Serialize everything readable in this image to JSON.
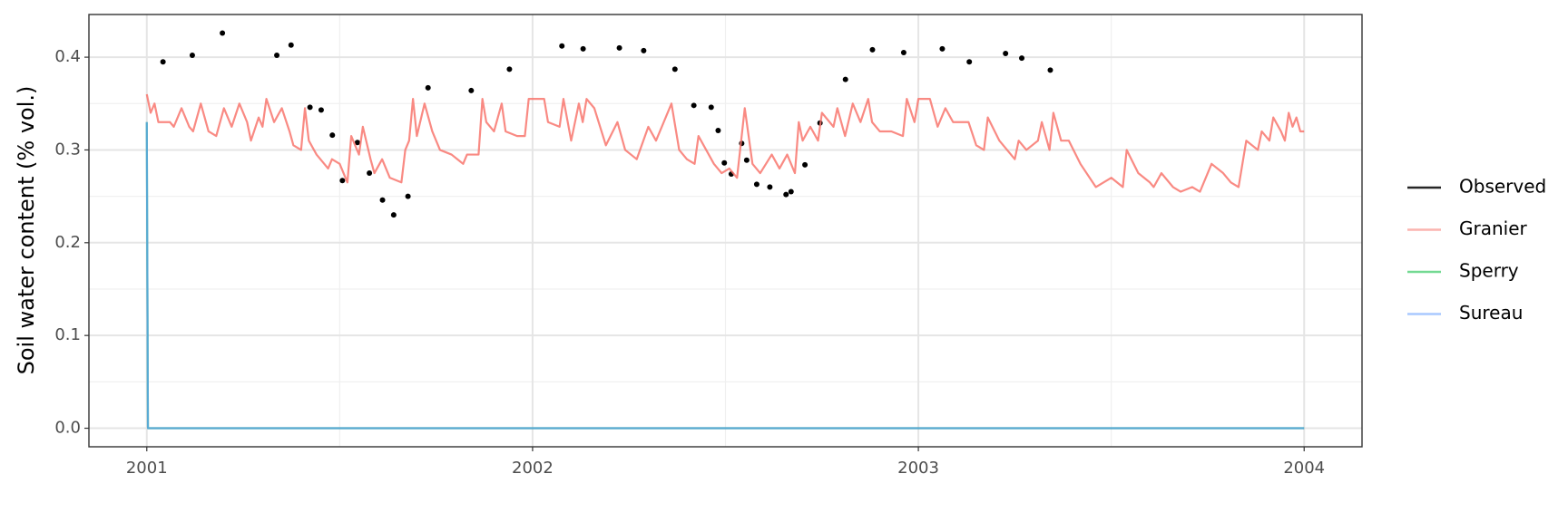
{
  "chart_data": {
    "type": "line",
    "ylabel": "Soil water content (% vol.)",
    "xlim": [
      2000.85,
      2004.15
    ],
    "xticks": [
      2001,
      2002,
      2003,
      2004
    ],
    "ylim": [
      -0.02,
      0.446
    ],
    "yticks": [
      {
        "value": 0,
        "label": "0.0"
      },
      0.1,
      0.2,
      0.3,
      0.4
    ],
    "grid": true,
    "legend": "right",
    "series": [
      {
        "name": "Observed",
        "color": "#000000",
        "style": "points",
        "x": [
          2001.042,
          2001.118,
          2001.196,
          2001.337,
          2001.374,
          2001.423,
          2001.452,
          2001.481,
          2001.507,
          2001.546,
          2001.577,
          2001.611,
          2001.64,
          2001.677,
          2001.729,
          2001.841,
          2001.94,
          2002.076,
          2002.131,
          2002.225,
          2002.288,
          2002.369,
          2002.418,
          2002.463,
          2002.481,
          2002.497,
          2002.515,
          2002.542,
          2002.555,
          2002.581,
          2002.615,
          2002.657,
          2002.67,
          2002.706,
          2002.745,
          2002.811,
          2002.881,
          2002.962,
          2003.062,
          2003.132,
          2003.226,
          2003.268,
          2003.342
        ],
        "values": [
          0.395,
          0.402,
          0.426,
          0.402,
          0.413,
          0.346,
          0.343,
          0.316,
          0.267,
          0.308,
          0.275,
          0.246,
          0.23,
          0.25,
          0.367,
          0.364,
          0.387,
          0.412,
          0.409,
          0.41,
          0.407,
          0.387,
          0.348,
          0.346,
          0.321,
          0.286,
          0.274,
          0.307,
          0.289,
          0.263,
          0.26,
          0.252,
          0.255,
          0.284,
          0.329,
          0.376,
          0.408,
          0.405,
          0.409,
          0.395,
          0.404,
          0.399,
          0.386
        ]
      },
      {
        "name": "Granier",
        "color": "#F8766D",
        "style": "line",
        "x": [
          2001.0,
          2001.01,
          2001.02,
          2001.03,
          2001.06,
          2001.07,
          2001.09,
          2001.11,
          2001.12,
          2001.14,
          2001.16,
          2001.18,
          2001.2,
          2001.22,
          2001.24,
          2001.26,
          2001.27,
          2001.29,
          2001.3,
          2001.31,
          2001.33,
          2001.35,
          2001.37,
          2001.38,
          2001.4,
          2001.41,
          2001.42,
          2001.44,
          2001.47,
          2001.48,
          2001.5,
          2001.52,
          2001.53,
          2001.55,
          2001.56,
          2001.58,
          2001.59,
          2001.61,
          2001.63,
          2001.66,
          2001.67,
          2001.68,
          2001.69,
          2001.7,
          2001.72,
          2001.74,
          2001.76,
          2001.79,
          2001.82,
          2001.83,
          2001.86,
          2001.87,
          2001.88,
          2001.9,
          2001.92,
          2001.93,
          2001.96,
          2001.98,
          2001.99,
          2002.03,
          2002.04,
          2002.07,
          2002.08,
          2002.1,
          2002.12,
          2002.13,
          2002.14,
          2002.16,
          2002.19,
          2002.22,
          2002.24,
          2002.27,
          2002.3,
          2002.32,
          2002.34,
          2002.36,
          2002.38,
          2002.4,
          2002.42,
          2002.43,
          2002.45,
          2002.47,
          2002.49,
          2002.51,
          2002.53,
          2002.55,
          2002.57,
          2002.59,
          2002.62,
          2002.64,
          2002.66,
          2002.68,
          2002.69,
          2002.7,
          2002.72,
          2002.74,
          2002.75,
          2002.78,
          2002.79,
          2002.81,
          2002.83,
          2002.85,
          2002.87,
          2002.88,
          2002.9,
          2002.93,
          2002.96,
          2002.97,
          2002.99,
          2003.0,
          2003.03,
          2003.05,
          2003.07,
          2003.09,
          2003.13,
          2003.15,
          2003.17,
          2003.18,
          2003.21,
          2003.25,
          2003.26,
          2003.28,
          2003.31,
          2003.32,
          2003.34,
          2003.35,
          2003.37,
          2003.39,
          2003.42,
          2003.46,
          2003.5,
          2003.53,
          2003.54,
          2003.57,
          2003.6,
          2003.61,
          2003.63,
          2003.66,
          2003.68,
          2003.71,
          2003.73,
          2003.76,
          2003.79,
          2003.81,
          2003.83,
          2003.85,
          2003.88,
          2003.89,
          2003.91,
          2003.92,
          2003.94,
          2003.95,
          2003.96,
          2003.97,
          2003.98,
          2003.99,
          2004.0
        ],
        "values": [
          0.36,
          0.34,
          0.35,
          0.33,
          0.33,
          0.325,
          0.345,
          0.325,
          0.32,
          0.35,
          0.32,
          0.315,
          0.345,
          0.325,
          0.35,
          0.33,
          0.31,
          0.335,
          0.325,
          0.355,
          0.33,
          0.345,
          0.32,
          0.305,
          0.3,
          0.345,
          0.31,
          0.295,
          0.28,
          0.29,
          0.285,
          0.265,
          0.315,
          0.295,
          0.325,
          0.29,
          0.275,
          0.29,
          0.27,
          0.265,
          0.3,
          0.31,
          0.355,
          0.315,
          0.35,
          0.32,
          0.3,
          0.295,
          0.285,
          0.295,
          0.295,
          0.355,
          0.33,
          0.32,
          0.35,
          0.32,
          0.315,
          0.315,
          0.355,
          0.355,
          0.33,
          0.325,
          0.355,
          0.31,
          0.35,
          0.33,
          0.355,
          0.345,
          0.305,
          0.33,
          0.3,
          0.29,
          0.325,
          0.31,
          0.33,
          0.35,
          0.3,
          0.29,
          0.285,
          0.315,
          0.3,
          0.285,
          0.275,
          0.28,
          0.27,
          0.345,
          0.285,
          0.275,
          0.295,
          0.28,
          0.295,
          0.275,
          0.33,
          0.31,
          0.325,
          0.31,
          0.34,
          0.325,
          0.345,
          0.315,
          0.35,
          0.33,
          0.355,
          0.33,
          0.32,
          0.32,
          0.315,
          0.355,
          0.33,
          0.355,
          0.355,
          0.325,
          0.345,
          0.33,
          0.33,
          0.305,
          0.3,
          0.335,
          0.31,
          0.29,
          0.31,
          0.3,
          0.31,
          0.33,
          0.3,
          0.34,
          0.31,
          0.31,
          0.285,
          0.26,
          0.27,
          0.26,
          0.3,
          0.275,
          0.265,
          0.26,
          0.275,
          0.26,
          0.255,
          0.26,
          0.255,
          0.285,
          0.275,
          0.265,
          0.26,
          0.31,
          0.3,
          0.32,
          0.31,
          0.335,
          0.32,
          0.31,
          0.34,
          0.325,
          0.335,
          0.32,
          0.32
        ]
      },
      {
        "name": "Sperry",
        "color": "#00BA38",
        "style": "line",
        "x": [
          2001.0,
          2001.003,
          2004.0
        ],
        "values": [
          0.33,
          0,
          0
        ]
      },
      {
        "name": "Sureau",
        "color": "#619CFF",
        "style": "line",
        "x": [
          2001.0,
          2001.003,
          2004.0
        ],
        "values": [
          0.33,
          0,
          0
        ]
      }
    ]
  }
}
